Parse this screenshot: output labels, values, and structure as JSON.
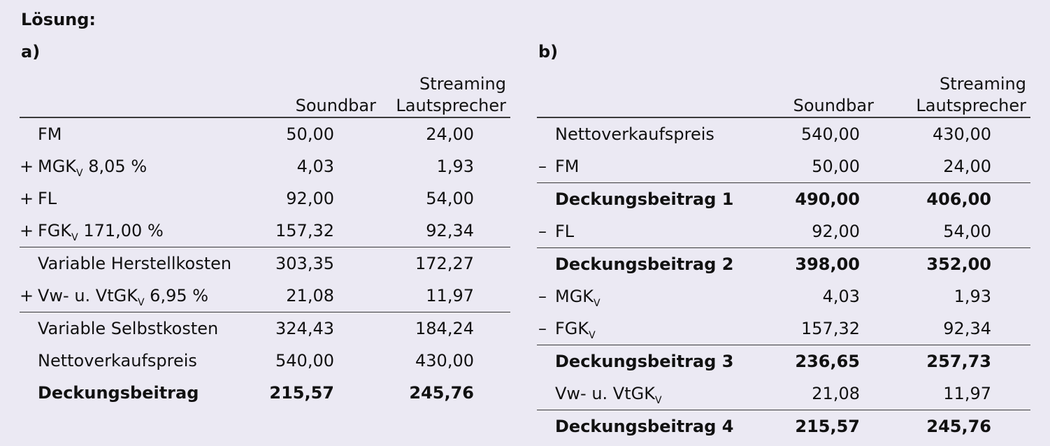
{
  "heading": "Lösung:",
  "parts": {
    "a": {
      "label": "a)",
      "col1": "Soundbar",
      "col2_line1": "Streaming",
      "col2_line2": "Lautsprecher",
      "rows": [
        {
          "sign": "",
          "label": "FM",
          "sub": "",
          "suffix": "",
          "v1": "50,00",
          "v2": "24,00"
        },
        {
          "sign": "+",
          "label": "MGK",
          "sub": "V",
          "suffix": " 8,05 %",
          "v1": "4,03",
          "v2": "1,93"
        },
        {
          "sign": "+",
          "label": "FL",
          "sub": "",
          "suffix": "",
          "v1": "92,00",
          "v2": "54,00"
        },
        {
          "sign": "+",
          "label": "FGK",
          "sub": "V",
          "suffix": " 171,00 %",
          "v1": "157,32",
          "v2": "92,34"
        },
        {
          "sign": "",
          "label": "Variable Herstellkosten",
          "sub": "",
          "suffix": "",
          "v1": "303,35",
          "v2": "172,27"
        },
        {
          "sign": "+",
          "label": "Vw- u. VtGK",
          "sub": "V",
          "suffix": " 6,95 %",
          "v1": "21,08",
          "v2": "11,97"
        },
        {
          "sign": "",
          "label": "Variable Selbstkosten",
          "sub": "",
          "suffix": "",
          "v1": "324,43",
          "v2": "184,24"
        },
        {
          "sign": "",
          "label": "Nettoverkaufspreis",
          "sub": "",
          "suffix": "",
          "v1": "540,00",
          "v2": "430,00"
        },
        {
          "sign": "",
          "label": "Deckungsbeitrag",
          "sub": "",
          "suffix": "",
          "v1": "215,57",
          "v2": "245,76"
        }
      ]
    },
    "b": {
      "label": "b)",
      "col1": "Soundbar",
      "col2_line1": "Streaming",
      "col2_line2": "Lautsprecher",
      "rows": [
        {
          "sign": "",
          "label": "Nettoverkaufspreis",
          "sub": "",
          "v1": "540,00",
          "v2": "430,00"
        },
        {
          "sign": "–",
          "label": "FM",
          "sub": "",
          "v1": "50,00",
          "v2": "24,00"
        },
        {
          "sign": "",
          "label": "Deckungsbeitrag 1",
          "sub": "",
          "v1": "490,00",
          "v2": "406,00"
        },
        {
          "sign": "–",
          "label": "FL",
          "sub": "",
          "v1": "92,00",
          "v2": "54,00"
        },
        {
          "sign": "",
          "label": "Deckungsbeitrag 2",
          "sub": "",
          "v1": "398,00",
          "v2": "352,00"
        },
        {
          "sign": "–",
          "label": "MGK",
          "sub": "V",
          "v1": "4,03",
          "v2": "1,93"
        },
        {
          "sign": "–",
          "label": "FGK",
          "sub": "V",
          "v1": "157,32",
          "v2": "92,34"
        },
        {
          "sign": "",
          "label": "Deckungsbeitrag 3",
          "sub": "",
          "v1": "236,65",
          "v2": "257,73"
        },
        {
          "sign": "",
          "label": "Vw- u. VtGK",
          "sub": "V",
          "v1": "21,08",
          "v2": "11,97"
        },
        {
          "sign": "",
          "label": "Deckungsbeitrag 4",
          "sub": "",
          "v1": "215,57",
          "v2": "245,76"
        }
      ]
    }
  }
}
